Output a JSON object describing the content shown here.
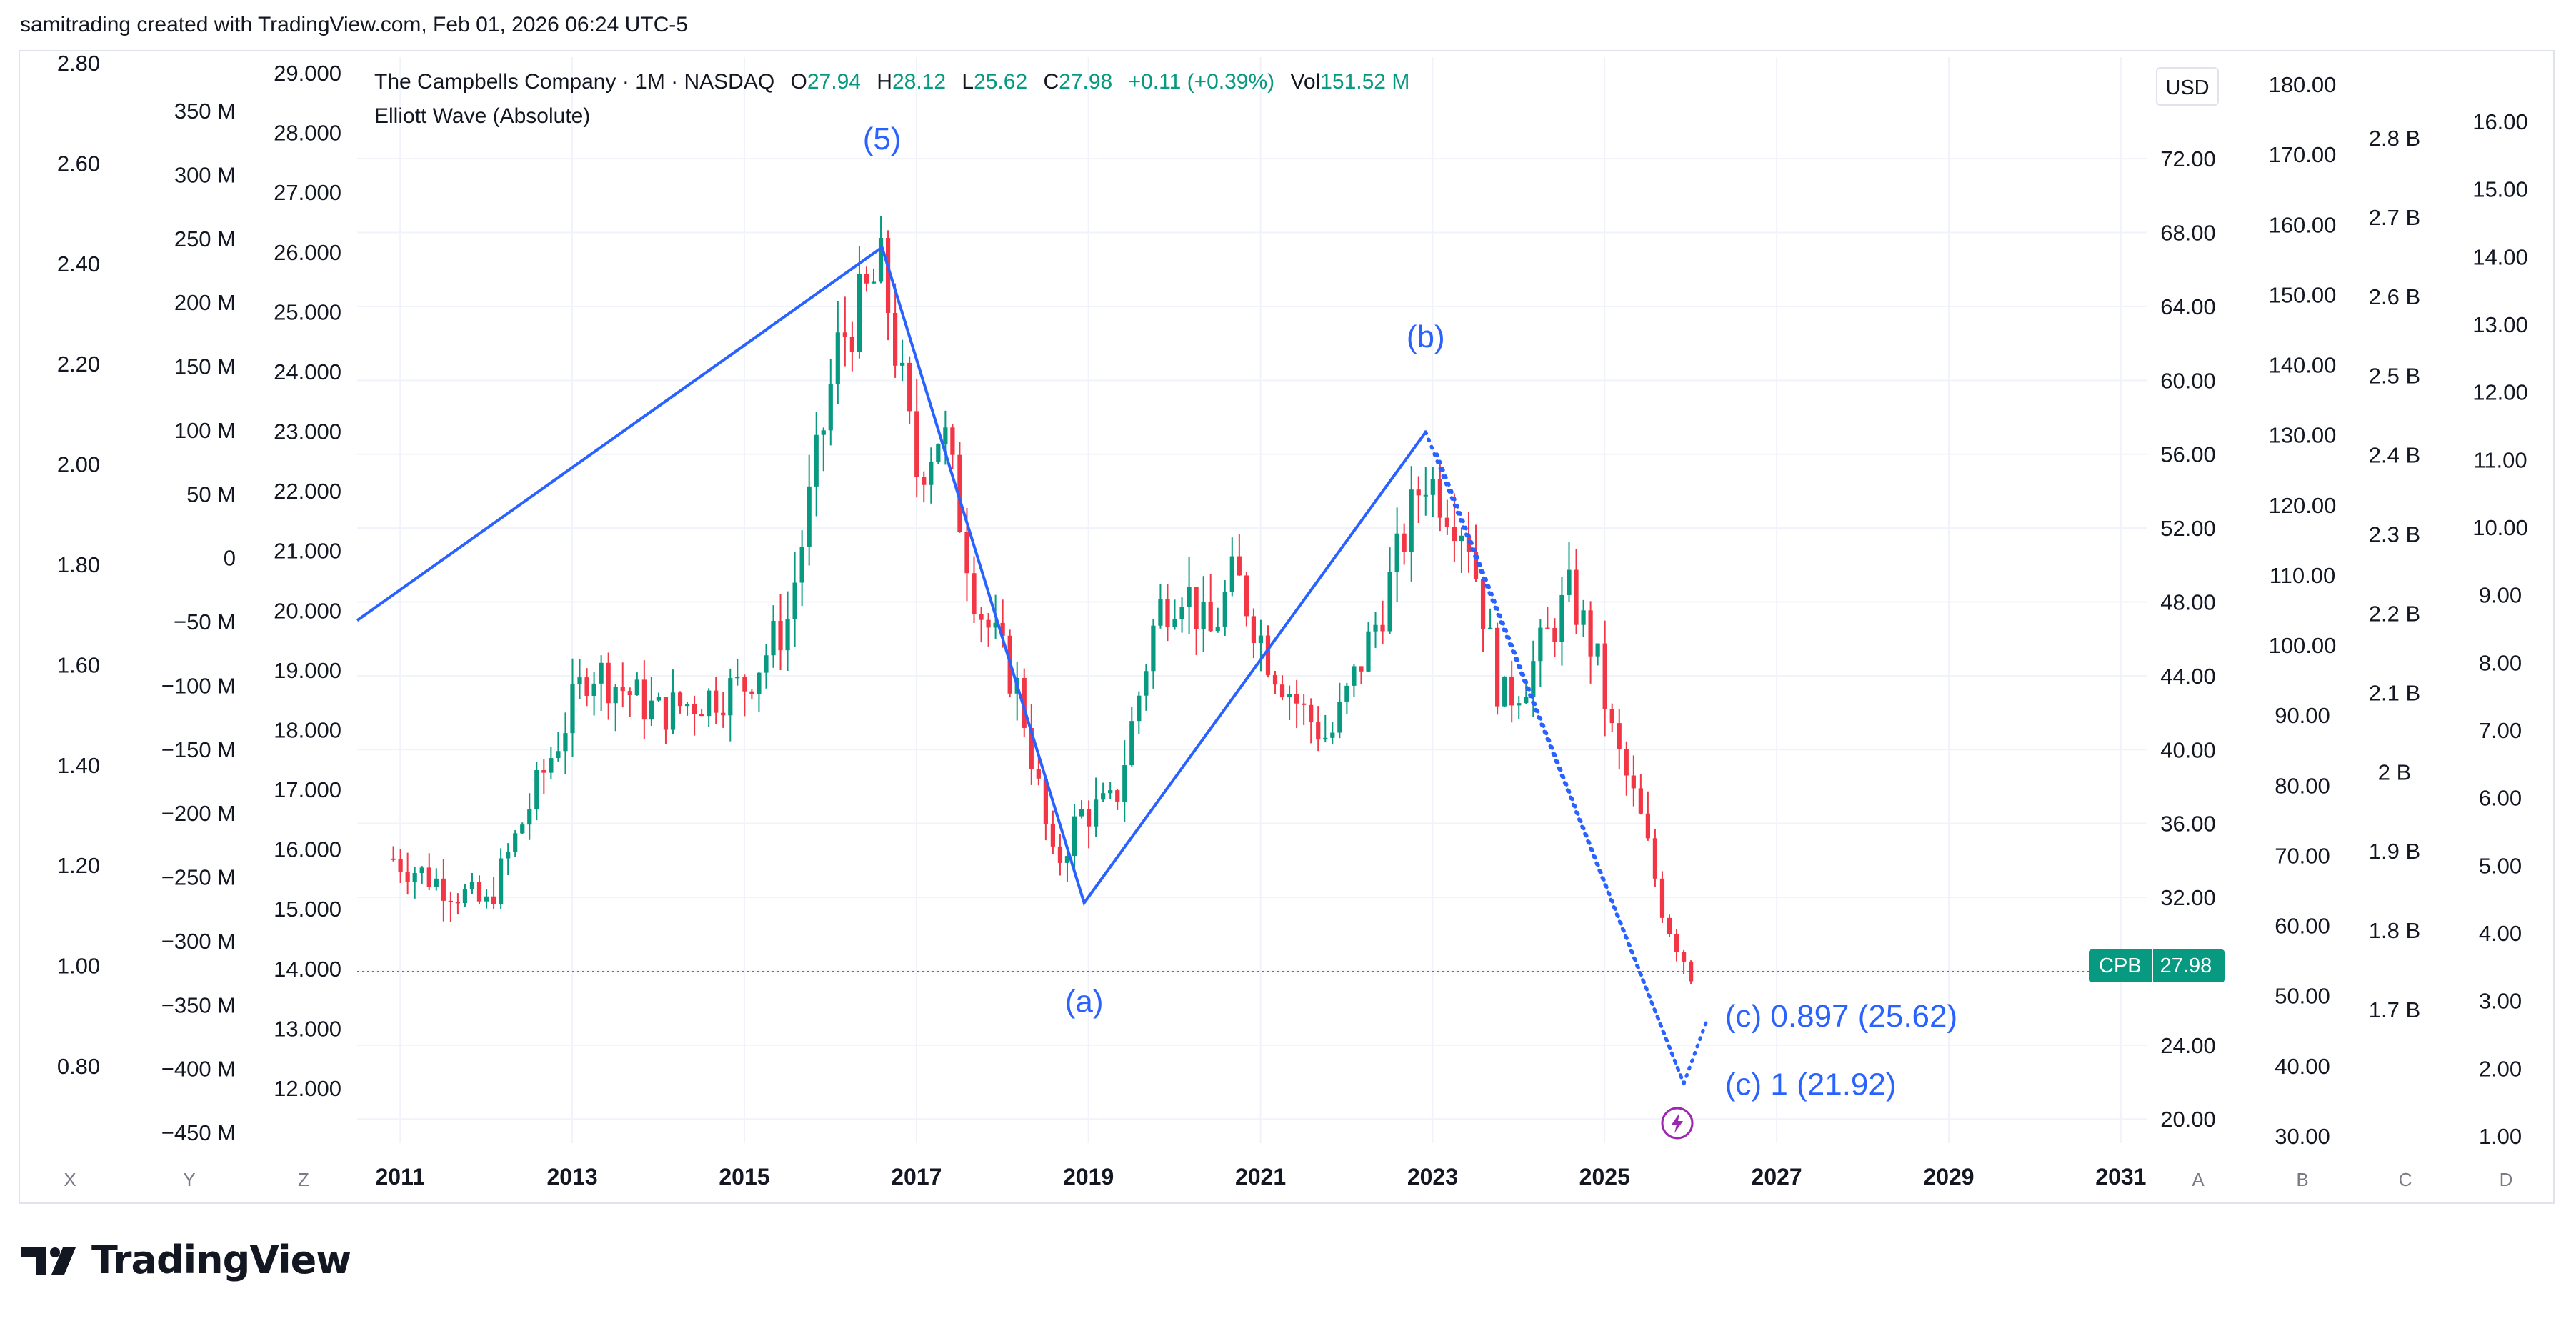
{
  "header": {
    "credit": "samitrading created with TradingView.com, Feb 01, 2026 06:24 UTC-5"
  },
  "legend": {
    "title": "The Campbells Company · 1M · NASDAQ",
    "o_label": "O",
    "o_value": "27.94",
    "h_label": "H",
    "h_value": "28.12",
    "l_label": "L",
    "l_value": "25.62",
    "c_label": "C",
    "c_value": "27.98",
    "change": "+0.11 (+0.39%)",
    "vol_label": "Vol",
    "vol_value": "151.52 M",
    "indicator": "Elliott Wave (Absolute)"
  },
  "currency_button": "USD",
  "price_tag": {
    "symbol": "CPB",
    "value": "27.98"
  },
  "branding": {
    "logo_text": "TradingView"
  },
  "colors": {
    "up": "#089981",
    "down": "#f23645",
    "wave": "#2962ff",
    "grid": "#f0f3fa",
    "border": "#e0e3eb",
    "text": "#131722",
    "accent_icon": "#9c27b0"
  },
  "icons": {
    "flash": "lightning-circle-icon"
  },
  "chart_data": {
    "type": "candlestick",
    "symbol": "CPB",
    "interval": "1M",
    "x_range": [
      2010.5,
      2031.3
    ],
    "y_range": [
      18.5,
      77.5
    ],
    "x_ticks": [
      "2011",
      "2013",
      "2015",
      "2017",
      "2019",
      "2021",
      "2023",
      "2025",
      "2027",
      "2029",
      "2031"
    ],
    "price_ticks": [
      "20.00",
      "24.00",
      "28.00",
      "32.00",
      "36.00",
      "40.00",
      "44.00",
      "48.00",
      "52.00",
      "56.00",
      "60.00",
      "64.00",
      "68.00",
      "72.00"
    ],
    "last_price": 27.98,
    "scale_letters_left": [
      "X",
      "Y",
      "Z"
    ],
    "scale_letters_right": [
      "A",
      "B",
      "C",
      "D"
    ],
    "axes": {
      "X": {
        "ticks": [
          "2.80",
          "2.60",
          "2.40",
          "2.20",
          "2.00",
          "1.80",
          "1.60",
          "1.40",
          "1.20",
          "1.00",
          "0.80"
        ]
      },
      "Y": {
        "ticks": [
          "350 M",
          "300 M",
          "250 M",
          "200 M",
          "150 M",
          "100 M",
          "50 M",
          "0",
          "−50 M",
          "−100 M",
          "−150 M",
          "−200 M",
          "−250 M",
          "−300 M",
          "−350 M",
          "−400 M",
          "−450 M"
        ]
      },
      "Z": {
        "ticks": [
          "29.000",
          "28.000",
          "27.000",
          "26.000",
          "25.000",
          "24.000",
          "23.000",
          "22.000",
          "21.000",
          "20.000",
          "19.000",
          "18.000",
          "17.000",
          "16.000",
          "15.000",
          "14.000",
          "13.000",
          "12.000"
        ]
      },
      "B": {
        "ticks": [
          "180.00",
          "170.00",
          "160.00",
          "150.00",
          "140.00",
          "130.00",
          "120.00",
          "110.00",
          "100.00",
          "90.00",
          "80.00",
          "70.00",
          "60.00",
          "50.00",
          "40.00",
          "30.00"
        ]
      },
      "C": {
        "ticks": [
          "2.8 B",
          "2.7 B",
          "2.6 B",
          "2.5 B",
          "2.4 B",
          "2.3 B",
          "2.2 B",
          "2.1 B",
          "2 B",
          "1.9 B",
          "1.8 B",
          "1.7 B"
        ]
      },
      "D": {
        "ticks": [
          "16.00",
          "15.00",
          "14.00",
          "13.00",
          "12.00",
          "11.00",
          "10.00",
          "9.00",
          "8.00",
          "7.00",
          "6.00",
          "5.00",
          "4.00",
          "3.00",
          "2.00",
          "1.00"
        ]
      }
    },
    "anchor_points": [
      {
        "t": 2010.92,
        "p": 34.1
      },
      {
        "t": 2012.0,
        "p": 31.5
      },
      {
        "t": 2013.2,
        "p": 44.5
      },
      {
        "t": 2014.0,
        "p": 42.0
      },
      {
        "t": 2015.0,
        "p": 43.5
      },
      {
        "t": 2015.5,
        "p": 47.0
      },
      {
        "t": 2016.1,
        "p": 62.0
      },
      {
        "t": 2016.6,
        "p": 66.0
      },
      {
        "t": 2017.0,
        "p": 55.0
      },
      {
        "t": 2017.3,
        "p": 57.5
      },
      {
        "t": 2017.7,
        "p": 48.0
      },
      {
        "t": 2018.2,
        "p": 43.0
      },
      {
        "t": 2018.6,
        "p": 33.5
      },
      {
        "t": 2018.9,
        "p": 36.5
      },
      {
        "t": 2019.3,
        "p": 37.0
      },
      {
        "t": 2019.8,
        "p": 47.5
      },
      {
        "t": 2020.1,
        "p": 49.0
      },
      {
        "t": 2020.4,
        "p": 46.0
      },
      {
        "t": 2020.7,
        "p": 49.5
      },
      {
        "t": 2021.1,
        "p": 45.0
      },
      {
        "t": 2021.5,
        "p": 42.0
      },
      {
        "t": 2021.8,
        "p": 40.5
      },
      {
        "t": 2022.4,
        "p": 47.5
      },
      {
        "t": 2022.9,
        "p": 55.0
      },
      {
        "t": 2023.4,
        "p": 52.0
      },
      {
        "t": 2023.8,
        "p": 42.5
      },
      {
        "t": 2024.1,
        "p": 44.0
      },
      {
        "t": 2024.6,
        "p": 48.5
      },
      {
        "t": 2024.9,
        "p": 45.0
      },
      {
        "t": 2025.1,
        "p": 40.5
      },
      {
        "t": 2025.4,
        "p": 36.5
      },
      {
        "t": 2025.7,
        "p": 31.0
      },
      {
        "t": 2026.0,
        "p": 28.0
      }
    ],
    "elliott_wave": [
      {
        "t": 2010.5,
        "p": 47.0
      },
      {
        "t": 2016.6,
        "p": 67.2
      },
      {
        "t": 2018.95,
        "p": 31.7
      },
      {
        "t": 2022.92,
        "p": 57.2
      }
    ],
    "projection_lines": [
      {
        "from": {
          "t": 2022.92,
          "p": 57.2
        },
        "to": {
          "t": 2025.92,
          "p": 21.92
        }
      },
      {
        "from": {
          "t": 2023.05,
          "p": 56.0
        },
        "to": {
          "t": 2025.92,
          "p": 21.92
        }
      },
      {
        "from": {
          "t": 2025.92,
          "p": 21.92
        },
        "to": {
          "t": 2026.2,
          "p": 25.5
        }
      }
    ],
    "wave_labels": [
      {
        "text": "(5)",
        "t": 2016.6,
        "p": 72.5
      },
      {
        "text": "(a)",
        "t": 2018.95,
        "p": 25.8
      },
      {
        "text": "(b)",
        "t": 2022.92,
        "p": 61.8
      },
      {
        "text": "(c) 0.897 (25.62)",
        "t": 2026.4,
        "p": 25.0
      },
      {
        "text": "(c) 1 (21.92)",
        "t": 2026.4,
        "p": 21.3
      }
    ]
  }
}
